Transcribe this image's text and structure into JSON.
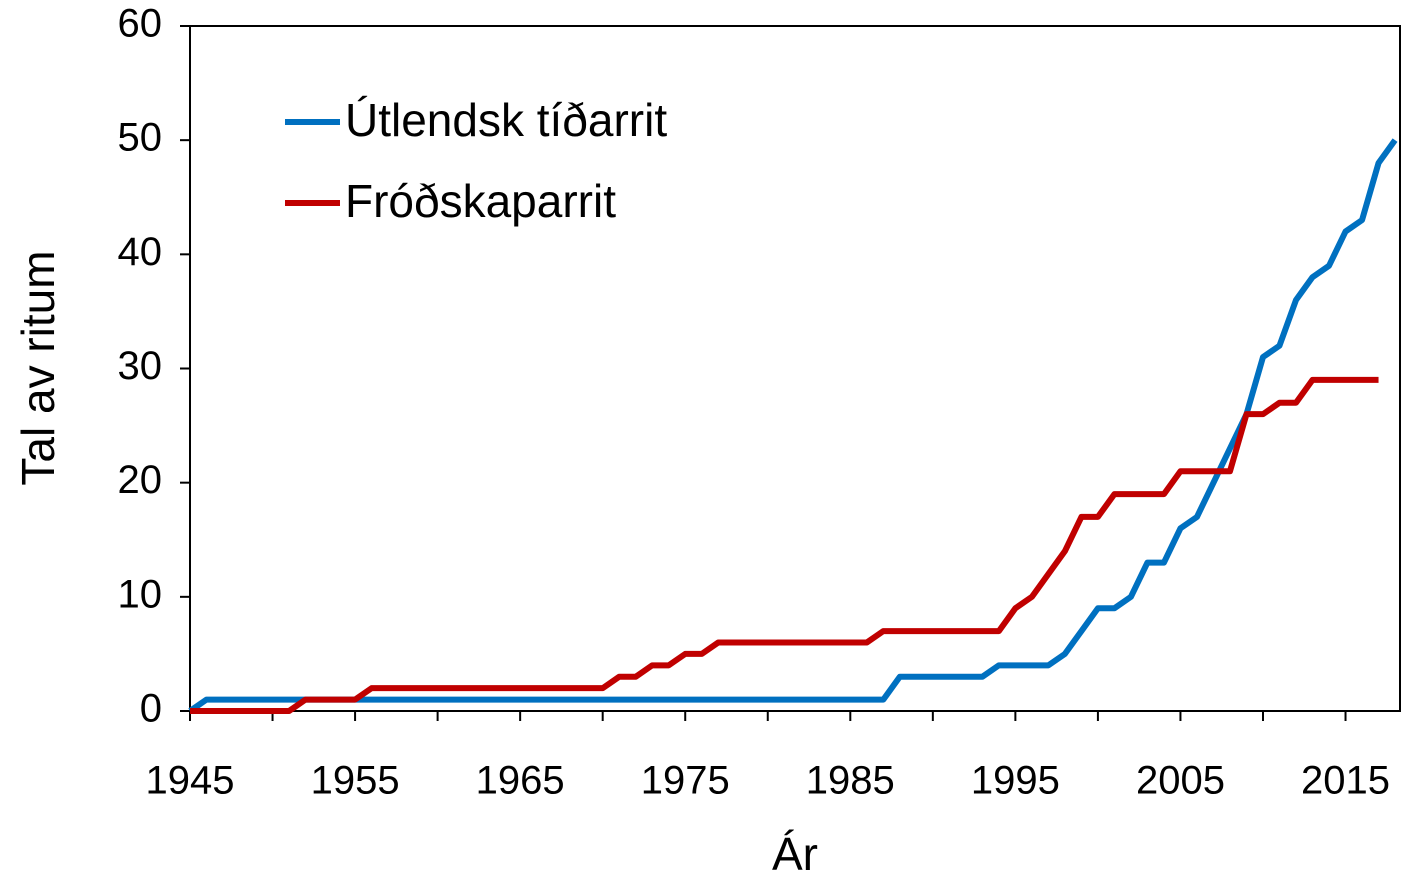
{
  "chart_data": {
    "type": "line",
    "xlabel": "Ár",
    "ylabel": "Tal av ritum",
    "x": [
      1945,
      1946,
      1947,
      1948,
      1949,
      1950,
      1951,
      1952,
      1953,
      1954,
      1955,
      1956,
      1957,
      1958,
      1959,
      1960,
      1961,
      1962,
      1963,
      1964,
      1965,
      1966,
      1967,
      1968,
      1969,
      1970,
      1971,
      1972,
      1973,
      1974,
      1975,
      1976,
      1977,
      1978,
      1979,
      1980,
      1981,
      1982,
      1983,
      1984,
      1985,
      1986,
      1987,
      1988,
      1989,
      1990,
      1991,
      1992,
      1993,
      1994,
      1995,
      1996,
      1997,
      1998,
      1999,
      2000,
      2001,
      2002,
      2003,
      2004,
      2005,
      2006,
      2007,
      2008,
      2009,
      2010,
      2011,
      2012,
      2013,
      2014,
      2015,
      2016,
      2017,
      2018
    ],
    "series": [
      {
        "name": "Útlendsk tíðarrit",
        "color": "#0070c0",
        "values": [
          0,
          1,
          1,
          1,
          1,
          1,
          1,
          1,
          1,
          1,
          1,
          1,
          1,
          1,
          1,
          1,
          1,
          1,
          1,
          1,
          1,
          1,
          1,
          1,
          1,
          1,
          1,
          1,
          1,
          1,
          1,
          1,
          1,
          1,
          1,
          1,
          1,
          1,
          1,
          1,
          1,
          1,
          1,
          3,
          3,
          3,
          3,
          3,
          3,
          4,
          4,
          4,
          4,
          5,
          7,
          9,
          9,
          10,
          13,
          13,
          16,
          17,
          20,
          23,
          26,
          31,
          32,
          36,
          38,
          39,
          42,
          43,
          48,
          50
        ]
      },
      {
        "name": "Fróðskaparrit",
        "color": "#c00000",
        "values": [
          0,
          0,
          0,
          0,
          0,
          0,
          0,
          1,
          1,
          1,
          1,
          2,
          2,
          2,
          2,
          2,
          2,
          2,
          2,
          2,
          2,
          2,
          2,
          2,
          2,
          2,
          3,
          3,
          4,
          4,
          5,
          5,
          6,
          6,
          6,
          6,
          6,
          6,
          6,
          6,
          6,
          6,
          7,
          7,
          7,
          7,
          7,
          7,
          7,
          7,
          9,
          10,
          12,
          14,
          17,
          17,
          19,
          19,
          19,
          19,
          21,
          21,
          21,
          21,
          26,
          26,
          27,
          27,
          29,
          29,
          29,
          29,
          29,
          null
        ]
      }
    ],
    "xlim": [
      1945,
      2018.3
    ],
    "ylim": [
      0,
      60
    ],
    "xticks": [
      1945,
      1955,
      1965,
      1975,
      1985,
      1995,
      2005,
      2015
    ],
    "xminorticks": [
      1950,
      1960,
      1970,
      1980,
      1990,
      2000,
      2010
    ],
    "yticks": [
      0,
      10,
      20,
      30,
      40,
      50,
      60
    ],
    "legend": "upper left"
  }
}
